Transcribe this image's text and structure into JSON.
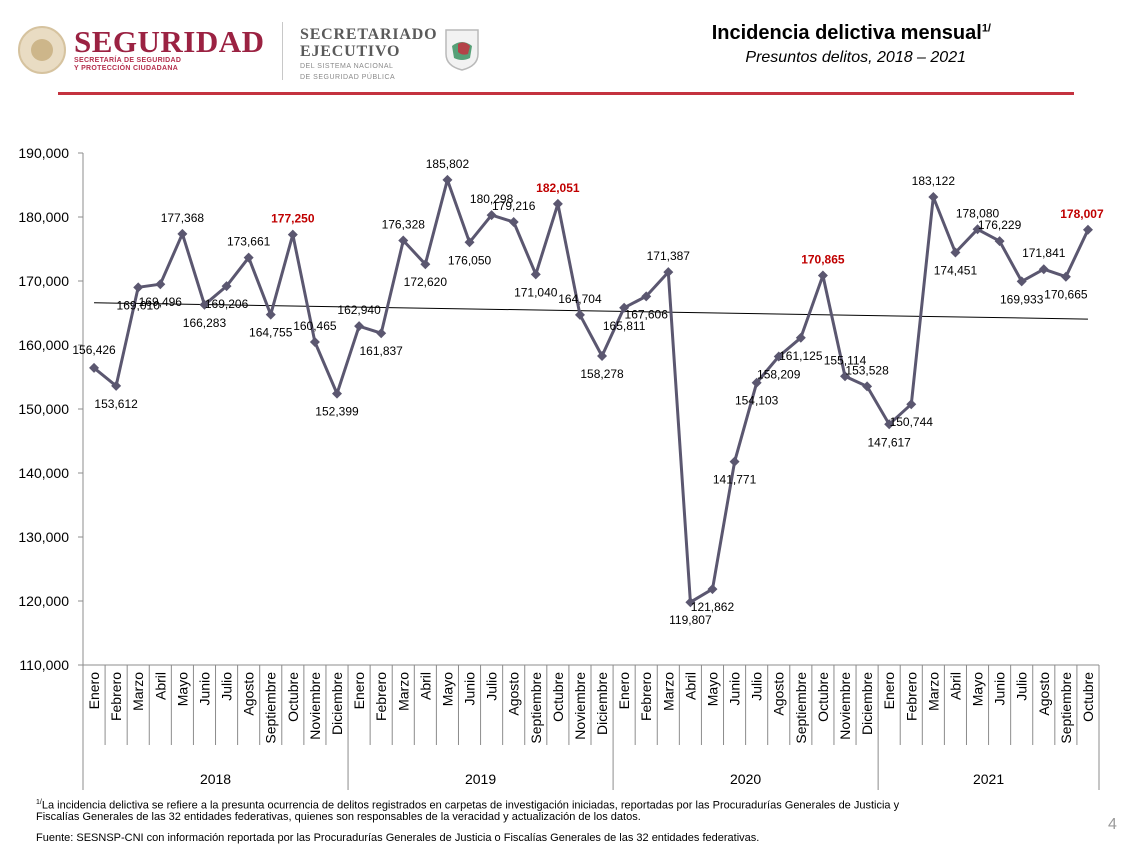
{
  "header": {
    "seguridad_title": "SEGURIDAD",
    "seguridad_sub1": "SECRETARÍA DE SEGURIDAD",
    "seguridad_sub2": "Y PROTECCIÓN CIUDADANA",
    "secretariado_title1": "SECRETARIADO",
    "secretariado_title2": "EJECUTIVO",
    "secretariado_sub1": "DEL SISTEMA NACIONAL",
    "secretariado_sub2": "DE SEGURIDAD PÚBLICA",
    "title": "Incidencia delictiva mensual",
    "title_sup": "1/",
    "subtitle": "Presuntos delitos, 2018 – 2021",
    "accent_color": "#c4323f",
    "brand_color": "#9b2242"
  },
  "chart_data": {
    "type": "line",
    "ylim": [
      110000,
      190000
    ],
    "ytick_step": 10000,
    "yticks": [
      "110,000",
      "120,000",
      "130,000",
      "140,000",
      "150,000",
      "160,000",
      "170,000",
      "180,000",
      "190,000"
    ],
    "month_names": [
      "Enero",
      "Febrero",
      "Marzo",
      "Abril",
      "Mayo",
      "Junio",
      "Julio",
      "Agosto",
      "Septiembre",
      "Octubre",
      "Noviembre",
      "Diciembre"
    ],
    "years": [
      {
        "label": "2018",
        "months": 12
      },
      {
        "label": "2019",
        "months": 12
      },
      {
        "label": "2020",
        "months": 12
      },
      {
        "label": "2021",
        "months": 10
      }
    ],
    "values": [
      156426,
      153612,
      169010,
      169496,
      177368,
      166283,
      169206,
      173661,
      164755,
      177250,
      160465,
      152399,
      162940,
      161837,
      176328,
      172620,
      185802,
      176050,
      180298,
      179216,
      171040,
      182051,
      164704,
      158278,
      165811,
      167606,
      171387,
      119807,
      121862,
      141771,
      154103,
      158209,
      161125,
      170865,
      155114,
      153528,
      147617,
      150744,
      183122,
      174451,
      178080,
      176229,
      169933,
      171841,
      170665,
      178007
    ],
    "data_labels": [
      "156,426",
      "153,612",
      "169,010",
      "169,496",
      "177,368",
      "166,283",
      "169,206",
      "173,661",
      "164,755",
      "177,250",
      "160,465",
      "152,399",
      "162,940",
      "161,837",
      "176,328",
      "172,620",
      "185,802",
      "176,050",
      "180,298",
      "179,216",
      "171,040",
      "182,051",
      "164,704",
      "158,278",
      "165,811",
      "167,606",
      "171,387",
      "119,807",
      "121,862",
      "141,771",
      "154,103",
      "158,209",
      "161,125",
      "170,865",
      "155,114",
      "153,528",
      "147,617",
      "150,744",
      "183,122",
      "174,451",
      "178,080",
      "176,229",
      "169,933",
      "171,841",
      "170,665",
      "178,007"
    ],
    "highlighted_indices": [
      9,
      21,
      33,
      45
    ],
    "trendline": {
      "start": 166600,
      "end": 164050
    },
    "colors": {
      "line": "#5b5770",
      "trend": "#000000",
      "highlight": "#c00000",
      "label": "#000000"
    },
    "grid": false
  },
  "footnotes": {
    "note_sup": "1/",
    "note_line1": "La incidencia delictiva se refiere a la presunta ocurrencia de delitos registrados en carpetas de investigación iniciadas, reportadas por las Procuradurías Generales de Justicia y",
    "note_line2": "Fiscalías Generales de las 32 entidades federativas, quienes son responsables de la veracidad y actualización de los datos.",
    "source": "Fuente: SESNSP-CNI con información reportada por las Procuradurías Generales de Justicia o Fiscalías Generales de las 32 entidades federativas."
  },
  "page_number": "4"
}
